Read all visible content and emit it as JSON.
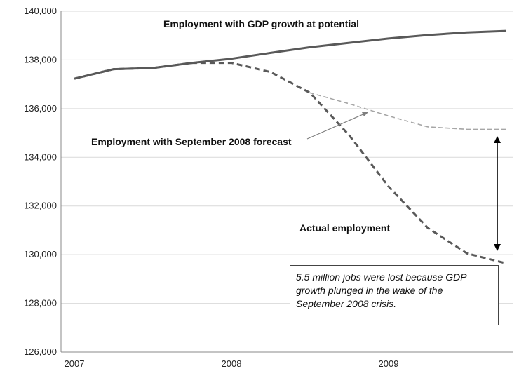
{
  "chart_data": {
    "type": "line",
    "title": "",
    "xlabel": "",
    "ylabel": "",
    "x_tick_labels": [
      "2007",
      "2008",
      "2009"
    ],
    "x_tick_positions": [
      2007,
      2008,
      2009
    ],
    "x_range": [
      2007,
      2009.75
    ],
    "ylim": [
      126000,
      140000
    ],
    "y_ticks": [
      126000,
      128000,
      130000,
      132000,
      134000,
      136000,
      138000,
      140000
    ],
    "y_tick_labels": [
      "126,000",
      "128,000",
      "130,000",
      "132,000",
      "134,000",
      "136,000",
      "138,000",
      "140,000"
    ],
    "grid": "horizontal",
    "series": [
      {
        "name": "Employment with GDP growth at potential",
        "color": "#595959",
        "style": "solid",
        "x": [
          2007,
          2007.25,
          2007.5,
          2007.75,
          2008,
          2008.25,
          2008.5,
          2008.75,
          2009,
          2009.25,
          2009.5,
          2009.75
        ],
        "y": [
          137230,
          137620,
          137670,
          137880,
          138050,
          138290,
          138520,
          138700,
          138880,
          139020,
          139130,
          139190
        ]
      },
      {
        "name": "Employment with September 2008 forecast",
        "color": "#a6a6a6",
        "style": "dashed",
        "x": [
          2008.5,
          2008.75,
          2009,
          2009.25,
          2009.5,
          2009.75
        ],
        "y": [
          136650,
          136200,
          135700,
          135250,
          135150,
          135150
        ]
      },
      {
        "name": "Actual employment",
        "color": "#595959",
        "style": "dashed",
        "x": [
          2007,
          2007.25,
          2007.5,
          2007.75,
          2008,
          2008.25,
          2008.5,
          2008.75,
          2009,
          2009.25,
          2009.5,
          2009.75
        ],
        "y": [
          137230,
          137620,
          137670,
          137880,
          137880,
          137500,
          136650,
          134900,
          132800,
          131100,
          130050,
          129640
        ]
      }
    ],
    "annotations": {
      "potential_label": "Employment with GDP growth at potential",
      "forecast_label": "Employment with September 2008 forecast",
      "actual_label": "Actual employment",
      "note": "5.5 million jobs were lost because GDP growth plunged in the wake of the September 2008 crisis.",
      "note_lines": [
        "5.5 million jobs were lost because GDP",
        "growth plunged in the wake of the",
        "September 2008 crisis."
      ]
    }
  }
}
